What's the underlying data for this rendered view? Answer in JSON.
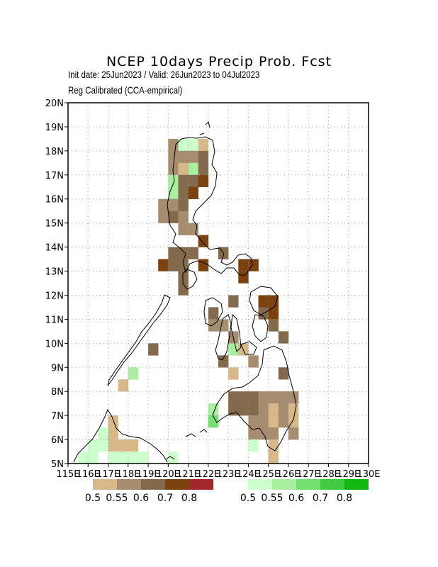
{
  "title": "NCEP  10days  Precip  Prob.  Fcst",
  "subtitle_dates": "Init date: 25Jun2023 / Valid: 26Jun2023 to 04Jul2023",
  "subtitle_method": "Reg Calibrated (CCA-empirical)",
  "map": {
    "lon_range": [
      115,
      130
    ],
    "lat_range": [
      5,
      20
    ],
    "cell_size_deg": 0.5,
    "grid_lines": "dotted",
    "x_tick_labels": [
      "115E",
      "116E",
      "117E",
      "118E",
      "119E",
      "120E",
      "121E",
      "122E",
      "123E",
      "124E",
      "125E",
      "126E",
      "127E",
      "128E",
      "129E",
      "130E"
    ],
    "y_tick_labels": [
      "5N",
      "6N",
      "7N",
      "8N",
      "9N",
      "10N",
      "11N",
      "12N",
      "13N",
      "14N",
      "15N",
      "16N",
      "17N",
      "18N",
      "19N",
      "20N"
    ]
  },
  "legend_dry": {
    "colors": [
      "#d8b889",
      "#a78d70",
      "#846a4c",
      "#7b420e",
      "#a3262a"
    ],
    "labels": [
      "0.5",
      "0.55",
      "0.6",
      "0.7",
      "0.8"
    ]
  },
  "legend_wet": {
    "colors": [
      "#ccffcc",
      "#a8f0a0",
      "#75e070",
      "#40cc40",
      "#10b810"
    ],
    "labels": [
      "0.5",
      "0.55",
      "0.6",
      "0.7",
      "0.8"
    ]
  },
  "cells": [
    {
      "lon": 120.25,
      "lat": 18.25,
      "c": 1
    },
    {
      "lon": 120.25,
      "lat": 17.75,
      "c": 1
    },
    {
      "lon": 120.25,
      "lat": 17.25,
      "c": 1
    },
    {
      "lon": 120.25,
      "lat": 16.75,
      "c": 6
    },
    {
      "lon": 120.25,
      "lat": 16.25,
      "c": 6
    },
    {
      "lon": 120.75,
      "lat": 18.25,
      "c": 5
    },
    {
      "lon": 121.25,
      "lat": 18.25,
      "c": 5
    },
    {
      "lon": 121.75,
      "lat": 18.25,
      "c": 0
    },
    {
      "lon": 120.75,
      "lat": 17.75,
      "c": 1
    },
    {
      "lon": 121.25,
      "lat": 17.75,
      "c": 1
    },
    {
      "lon": 121.75,
      "lat": 17.75,
      "c": 2
    },
    {
      "lon": 120.75,
      "lat": 17.25,
      "c": 0
    },
    {
      "lon": 121.25,
      "lat": 17.25,
      "c": 6
    },
    {
      "lon": 121.75,
      "lat": 17.25,
      "c": 2
    },
    {
      "lon": 120.75,
      "lat": 16.75,
      "c": 2
    },
    {
      "lon": 121.25,
      "lat": 16.75,
      "c": 2
    },
    {
      "lon": 121.75,
      "lat": 16.75,
      "c": 3
    },
    {
      "lon": 120.75,
      "lat": 16.25,
      "c": 2
    },
    {
      "lon": 121.25,
      "lat": 16.25,
      "c": 3
    },
    {
      "lon": 119.75,
      "lat": 15.75,
      "c": 1
    },
    {
      "lon": 120.25,
      "lat": 15.75,
      "c": 1
    },
    {
      "lon": 120.75,
      "lat": 15.75,
      "c": 2
    },
    {
      "lon": 119.75,
      "lat": 15.25,
      "c": 1
    },
    {
      "lon": 120.25,
      "lat": 15.25,
      "c": 2
    },
    {
      "lon": 120.75,
      "lat": 15.25,
      "c": 1
    },
    {
      "lon": 120.75,
      "lat": 14.75,
      "c": 1
    },
    {
      "lon": 121.25,
      "lat": 14.75,
      "c": 1
    },
    {
      "lon": 121.75,
      "lat": 14.25,
      "c": 3
    },
    {
      "lon": 120.25,
      "lat": 13.75,
      "c": 2
    },
    {
      "lon": 120.75,
      "lat": 13.75,
      "c": 2
    },
    {
      "lon": 121.25,
      "lat": 13.75,
      "c": 2
    },
    {
      "lon": 122.75,
      "lat": 13.75,
      "c": 2
    },
    {
      "lon": 119.75,
      "lat": 13.25,
      "c": 3
    },
    {
      "lon": 120.25,
      "lat": 13.25,
      "c": 2
    },
    {
      "lon": 120.75,
      "lat": 13.25,
      "c": 2
    },
    {
      "lon": 121.75,
      "lat": 13.25,
      "c": 3
    },
    {
      "lon": 123.75,
      "lat": 13.25,
      "c": 3
    },
    {
      "lon": 124.25,
      "lat": 13.25,
      "c": 3
    },
    {
      "lon": 123.75,
      "lat": 12.75,
      "c": 3
    },
    {
      "lon": 120.75,
      "lat": 12.75,
      "c": 2
    },
    {
      "lon": 120.75,
      "lat": 12.25,
      "c": 2
    },
    {
      "lon": 123.25,
      "lat": 11.75,
      "c": 2
    },
    {
      "lon": 124.75,
      "lat": 11.75,
      "c": 3
    },
    {
      "lon": 125.25,
      "lat": 11.75,
      "c": 3
    },
    {
      "lon": 122.25,
      "lat": 11.25,
      "c": 2
    },
    {
      "lon": 124.75,
      "lat": 11.25,
      "c": 2
    },
    {
      "lon": 125.25,
      "lat": 11.25,
      "c": 3
    },
    {
      "lon": 122.25,
      "lat": 10.75,
      "c": 1
    },
    {
      "lon": 122.75,
      "lat": 10.75,
      "c": 1
    },
    {
      "lon": 125.25,
      "lat": 10.75,
      "c": 2
    },
    {
      "lon": 123.25,
      "lat": 10.25,
      "c": 1
    },
    {
      "lon": 125.75,
      "lat": 10.25,
      "c": 2
    },
    {
      "lon": 119.25,
      "lat": 9.75,
      "c": 2
    },
    {
      "lon": 123.25,
      "lat": 9.75,
      "c": 6
    },
    {
      "lon": 123.75,
      "lat": 9.75,
      "c": 0
    },
    {
      "lon": 122.75,
      "lat": 9.25,
      "c": 2
    },
    {
      "lon": 124.25,
      "lat": 9.25,
      "c": 1
    },
    {
      "lon": 118.25,
      "lat": 8.75,
      "c": 6
    },
    {
      "lon": 123.25,
      "lat": 8.75,
      "c": 0
    },
    {
      "lon": 125.75,
      "lat": 8.75,
      "c": 2
    },
    {
      "lon": 117.75,
      "lat": 8.25,
      "c": 0
    },
    {
      "lon": 123.25,
      "lat": 7.75,
      "c": 2
    },
    {
      "lon": 123.75,
      "lat": 7.75,
      "c": 2
    },
    {
      "lon": 124.25,
      "lat": 7.75,
      "c": 2
    },
    {
      "lon": 124.75,
      "lat": 7.75,
      "c": 1
    },
    {
      "lon": 125.25,
      "lat": 7.75,
      "c": 1
    },
    {
      "lon": 125.75,
      "lat": 7.75,
      "c": 1
    },
    {
      "lon": 126.25,
      "lat": 7.75,
      "c": 1
    },
    {
      "lon": 122.25,
      "lat": 7.25,
      "c": 6
    },
    {
      "lon": 123.25,
      "lat": 7.25,
      "c": 2
    },
    {
      "lon": 123.75,
      "lat": 7.25,
      "c": 2
    },
    {
      "lon": 124.25,
      "lat": 7.25,
      "c": 2
    },
    {
      "lon": 124.75,
      "lat": 7.25,
      "c": 1
    },
    {
      "lon": 125.25,
      "lat": 7.25,
      "c": 0
    },
    {
      "lon": 125.75,
      "lat": 7.25,
      "c": 1
    },
    {
      "lon": 126.25,
      "lat": 7.25,
      "c": 0
    },
    {
      "lon": 122.25,
      "lat": 6.75,
      "c": 7
    },
    {
      "lon": 124.25,
      "lat": 6.75,
      "c": 1
    },
    {
      "lon": 124.75,
      "lat": 6.75,
      "c": 1
    },
    {
      "lon": 125.25,
      "lat": 6.75,
      "c": 0
    },
    {
      "lon": 125.75,
      "lat": 6.75,
      "c": 1
    },
    {
      "lon": 126.25,
      "lat": 6.75,
      "c": 0
    },
    {
      "lon": 124.25,
      "lat": 6.25,
      "c": 1
    },
    {
      "lon": 124.75,
      "lat": 6.25,
      "c": 1
    },
    {
      "lon": 125.25,
      "lat": 6.25,
      "c": 1
    },
    {
      "lon": 126.25,
      "lat": 6.25,
      "c": 1
    },
    {
      "lon": 124.25,
      "lat": 5.75,
      "c": 5
    },
    {
      "lon": 125.25,
      "lat": 5.75,
      "c": 0
    },
    {
      "lon": 125.25,
      "lat": 5.25,
      "c": 0
    },
    {
      "lon": 117.25,
      "lat": 6.75,
      "c": 0
    },
    {
      "lon": 117.25,
      "lat": 6.25,
      "c": 0
    },
    {
      "lon": 117.25,
      "lat": 5.75,
      "c": 0
    },
    {
      "lon": 116.75,
      "lat": 6.25,
      "c": 5
    },
    {
      "lon": 116.75,
      "lat": 5.75,
      "c": 5
    },
    {
      "lon": 116.25,
      "lat": 5.75,
      "c": 5
    },
    {
      "lon": 116.25,
      "lat": 5.25,
      "c": 5
    },
    {
      "lon": 115.75,
      "lat": 5.25,
      "c": 5
    },
    {
      "lon": 117.75,
      "lat": 5.75,
      "c": 0
    },
    {
      "lon": 118.25,
      "lat": 5.75,
      "c": 0
    },
    {
      "lon": 117.25,
      "lat": 5.25,
      "c": 5
    },
    {
      "lon": 117.75,
      "lat": 5.25,
      "c": 5
    },
    {
      "lon": 118.25,
      "lat": 5.25,
      "c": 5
    },
    {
      "lon": 118.75,
      "lat": 5.25,
      "c": 5
    },
    {
      "lon": 120.25,
      "lat": 5.25,
      "c": 5
    }
  ]
}
